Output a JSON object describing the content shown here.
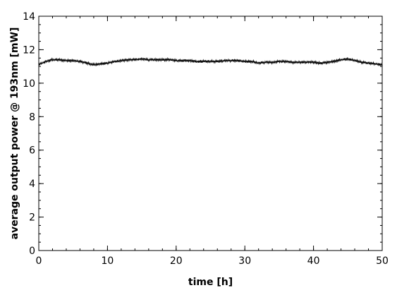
{
  "chart_data": {
    "type": "line",
    "title": "",
    "xlabel": "time [h]",
    "ylabel": "average output power @ 193nm [mW]",
    "xlim": [
      0,
      50
    ],
    "ylim": [
      0,
      14
    ],
    "x_ticks": [
      0,
      10,
      20,
      30,
      40,
      50
    ],
    "y_ticks": [
      0,
      2,
      4,
      6,
      8,
      10,
      12,
      14
    ],
    "x_minor_step": 2,
    "y_minor_step": 0.5,
    "grid": false,
    "legend": "none",
    "line_color": "#000000",
    "series": [
      {
        "x": [
          0,
          1,
          2,
          3,
          4,
          5,
          6,
          7,
          8,
          9,
          10,
          11,
          12,
          13,
          14,
          15,
          16,
          17,
          18,
          19,
          20,
          21,
          22,
          23,
          24,
          25,
          26,
          27,
          28,
          29,
          30,
          31,
          32,
          33,
          34,
          35,
          36,
          37,
          38,
          39,
          40,
          41,
          42,
          43,
          44,
          45,
          46,
          47,
          48,
          49,
          50
        ],
        "values": [
          11.1,
          11.3,
          11.4,
          11.4,
          11.35,
          11.35,
          11.3,
          11.2,
          11.1,
          11.15,
          11.2,
          11.3,
          11.35,
          11.4,
          11.4,
          11.45,
          11.4,
          11.4,
          11.4,
          11.4,
          11.35,
          11.35,
          11.35,
          11.3,
          11.3,
          11.3,
          11.3,
          11.35,
          11.35,
          11.35,
          11.3,
          11.3,
          11.2,
          11.25,
          11.25,
          11.3,
          11.3,
          11.25,
          11.25,
          11.25,
          11.25,
          11.2,
          11.25,
          11.3,
          11.4,
          11.45,
          11.35,
          11.25,
          11.2,
          11.15,
          11.1
        ]
      }
    ]
  }
}
